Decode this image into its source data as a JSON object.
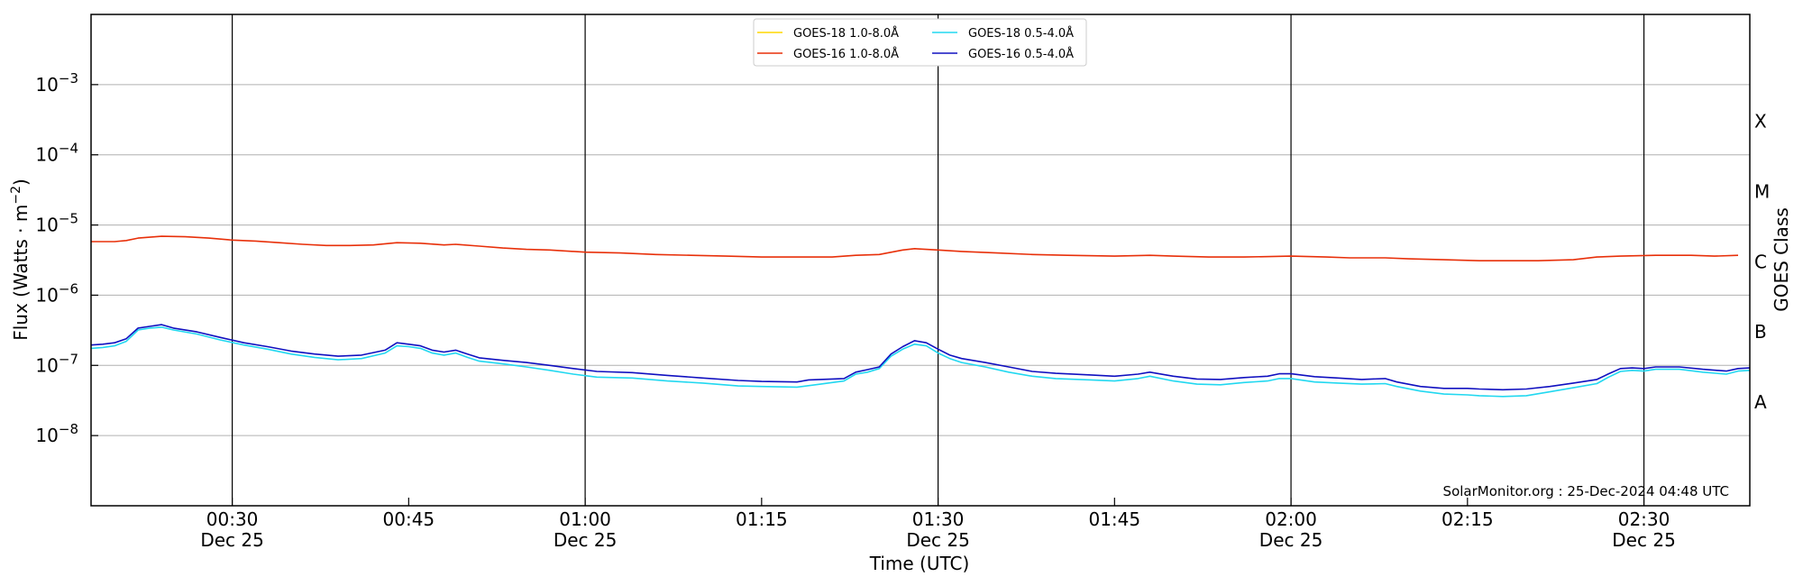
{
  "chart_data": {
    "type": "line",
    "ylabel": "Flux (Watts · m⁻²)",
    "xlabel": "Time (UTC)",
    "right_axis_label": "GOES Class",
    "credit": "SolarMonitor.org : 25-Dec-2024 04:48 UTC",
    "y_scale": "log",
    "ylim": [
      1e-09,
      0.01
    ],
    "xlim": [
      "00:18",
      "02:39"
    ],
    "grid": "horizontal",
    "legend_position": "top-center",
    "y_ticks": [
      {
        "value": 1e-08,
        "label_base": "10",
        "label_exp": "−8"
      },
      {
        "value": 1e-07,
        "label_base": "10",
        "label_exp": "−7"
      },
      {
        "value": 1e-06,
        "label_base": "10",
        "label_exp": "−6"
      },
      {
        "value": 1e-05,
        "label_base": "10",
        "label_exp": "−5"
      },
      {
        "value": 0.0001,
        "label_base": "10",
        "label_exp": "−4"
      },
      {
        "value": 0.001,
        "label_base": "10",
        "label_exp": "−3"
      }
    ],
    "x_ticks": [
      {
        "time": "00:30",
        "label": "00:30",
        "sublabel": "Dec 25"
      },
      {
        "time": "00:45",
        "label": "00:45",
        "sublabel": ""
      },
      {
        "time": "01:00",
        "label": "01:00",
        "sublabel": "Dec 25"
      },
      {
        "time": "01:15",
        "label": "01:15",
        "sublabel": ""
      },
      {
        "time": "01:30",
        "label": "01:30",
        "sublabel": "Dec 25"
      },
      {
        "time": "01:45",
        "label": "01:45",
        "sublabel": ""
      },
      {
        "time": "02:00",
        "label": "02:00",
        "sublabel": "Dec 25"
      },
      {
        "time": "02:15",
        "label": "02:15",
        "sublabel": ""
      },
      {
        "time": "02:30",
        "label": "02:30",
        "sublabel": "Dec 25"
      }
    ],
    "vertical_lines": [
      "00:30",
      "01:00",
      "01:30",
      "02:00",
      "02:30"
    ],
    "class_labels": [
      {
        "label": "A",
        "value": 3e-08
      },
      {
        "label": "B",
        "value": 3e-07
      },
      {
        "label": "C",
        "value": 3e-06
      },
      {
        "label": "M",
        "value": 3e-05
      },
      {
        "label": "X",
        "value": 0.0003
      }
    ],
    "series": [
      {
        "name": "GOES-18 1.0-8.0Å",
        "color": "#FFD700",
        "points": []
      },
      {
        "name": "GOES-16 1.0-8.0Å",
        "color": "#E8300A",
        "points": [
          [
            "00:18",
            5.8e-06
          ],
          [
            "00:20",
            5.8e-06
          ],
          [
            "00:21",
            6e-06
          ],
          [
            "00:22",
            6.5e-06
          ],
          [
            "00:24",
            6.9e-06
          ],
          [
            "00:26",
            6.8e-06
          ],
          [
            "00:28",
            6.5e-06
          ],
          [
            "00:30",
            6.1e-06
          ],
          [
            "00:32",
            5.9e-06
          ],
          [
            "00:34",
            5.6e-06
          ],
          [
            "00:36",
            5.3e-06
          ],
          [
            "00:38",
            5.1e-06
          ],
          [
            "00:40",
            5.1e-06
          ],
          [
            "00:42",
            5.2e-06
          ],
          [
            "00:44",
            5.6e-06
          ],
          [
            "00:46",
            5.5e-06
          ],
          [
            "00:48",
            5.2e-06
          ],
          [
            "00:49",
            5.3e-06
          ],
          [
            "00:51",
            5e-06
          ],
          [
            "00:53",
            4.7e-06
          ],
          [
            "00:55",
            4.5e-06
          ],
          [
            "00:57",
            4.4e-06
          ],
          [
            "01:00",
            4.1e-06
          ],
          [
            "01:03",
            4e-06
          ],
          [
            "01:06",
            3.8e-06
          ],
          [
            "01:09",
            3.7e-06
          ],
          [
            "01:12",
            3.6e-06
          ],
          [
            "01:15",
            3.5e-06
          ],
          [
            "01:18",
            3.5e-06
          ],
          [
            "01:21",
            3.5e-06
          ],
          [
            "01:23",
            3.7e-06
          ],
          [
            "01:25",
            3.8e-06
          ],
          [
            "01:27",
            4.4e-06
          ],
          [
            "01:28",
            4.6e-06
          ],
          [
            "01:30",
            4.4e-06
          ],
          [
            "01:32",
            4.2e-06
          ],
          [
            "01:35",
            4e-06
          ],
          [
            "01:38",
            3.8e-06
          ],
          [
            "01:41",
            3.7e-06
          ],
          [
            "01:45",
            3.6e-06
          ],
          [
            "01:48",
            3.7e-06
          ],
          [
            "01:50",
            3.6e-06
          ],
          [
            "01:53",
            3.5e-06
          ],
          [
            "01:56",
            3.5e-06
          ],
          [
            "02:00",
            3.6e-06
          ],
          [
            "02:03",
            3.5e-06
          ],
          [
            "02:05",
            3.4e-06
          ],
          [
            "02:08",
            3.4e-06
          ],
          [
            "02:10",
            3.3e-06
          ],
          [
            "02:13",
            3.2e-06
          ],
          [
            "02:16",
            3.1e-06
          ],
          [
            "02:19",
            3.1e-06
          ],
          [
            "02:21",
            3.1e-06
          ],
          [
            "02:24",
            3.2e-06
          ],
          [
            "02:26",
            3.5e-06
          ],
          [
            "02:28",
            3.6e-06
          ],
          [
            "02:31",
            3.7e-06
          ],
          [
            "02:34",
            3.7e-06
          ],
          [
            "02:36",
            3.6e-06
          ],
          [
            "02:38",
            3.7e-06
          ]
        ]
      },
      {
        "name": "GOES-18 0.5-4.0Å",
        "color": "#22D8F0",
        "points": [
          [
            "00:18",
            1.75e-07
          ],
          [
            "00:19",
            1.8e-07
          ],
          [
            "00:20",
            1.9e-07
          ],
          [
            "00:21",
            2.2e-07
          ],
          [
            "00:22",
            3.2e-07
          ],
          [
            "00:23",
            3.4e-07
          ],
          [
            "00:24",
            3.5e-07
          ],
          [
            "00:25",
            3.2e-07
          ],
          [
            "00:27",
            2.8e-07
          ],
          [
            "00:29",
            2.3e-07
          ],
          [
            "00:31",
            1.95e-07
          ],
          [
            "00:33",
            1.7e-07
          ],
          [
            "00:35",
            1.45e-07
          ],
          [
            "00:37",
            1.3e-07
          ],
          [
            "00:39",
            1.2e-07
          ],
          [
            "00:41",
            1.25e-07
          ],
          [
            "00:43",
            1.5e-07
          ],
          [
            "00:44",
            1.9e-07
          ],
          [
            "00:45",
            1.85e-07
          ],
          [
            "00:46",
            1.75e-07
          ],
          [
            "00:47",
            1.5e-07
          ],
          [
            "00:48",
            1.4e-07
          ],
          [
            "00:49",
            1.5e-07
          ],
          [
            "00:50",
            1.3e-07
          ],
          [
            "00:51",
            1.15e-07
          ],
          [
            "00:53",
            1.05e-07
          ],
          [
            "00:55",
            9.5e-08
          ],
          [
            "00:57",
            8.5e-08
          ],
          [
            "00:59",
            7.5e-08
          ],
          [
            "01:01",
            6.8e-08
          ],
          [
            "01:04",
            6.6e-08
          ],
          [
            "01:07",
            6e-08
          ],
          [
            "01:10",
            5.6e-08
          ],
          [
            "01:13",
            5.1e-08
          ],
          [
            "01:15",
            5e-08
          ],
          [
            "01:18",
            4.9e-08
          ],
          [
            "01:20",
            5.4e-08
          ],
          [
            "01:22",
            6e-08
          ],
          [
            "01:23",
            7.5e-08
          ],
          [
            "01:24",
            8e-08
          ],
          [
            "01:25",
            9e-08
          ],
          [
            "01:26",
            1.35e-07
          ],
          [
            "01:27",
            1.7e-07
          ],
          [
            "01:28",
            2e-07
          ],
          [
            "01:29",
            1.9e-07
          ],
          [
            "01:30",
            1.5e-07
          ],
          [
            "01:31",
            1.25e-07
          ],
          [
            "01:32",
            1.1e-07
          ],
          [
            "01:34",
            9.5e-08
          ],
          [
            "01:36",
            8e-08
          ],
          [
            "01:38",
            7e-08
          ],
          [
            "01:40",
            6.5e-08
          ],
          [
            "01:43",
            6.2e-08
          ],
          [
            "01:45",
            6e-08
          ],
          [
            "01:47",
            6.5e-08
          ],
          [
            "01:48",
            7e-08
          ],
          [
            "01:50",
            6e-08
          ],
          [
            "01:52",
            5.4e-08
          ],
          [
            "01:54",
            5.3e-08
          ],
          [
            "01:56",
            5.7e-08
          ],
          [
            "01:58",
            6e-08
          ],
          [
            "01:59",
            6.5e-08
          ],
          [
            "02:00",
            6.5e-08
          ],
          [
            "02:02",
            5.8e-08
          ],
          [
            "02:04",
            5.6e-08
          ],
          [
            "02:06",
            5.4e-08
          ],
          [
            "02:08",
            5.5e-08
          ],
          [
            "02:09",
            5e-08
          ],
          [
            "02:11",
            4.3e-08
          ],
          [
            "02:13",
            3.9e-08
          ],
          [
            "02:15",
            3.8e-08
          ],
          [
            "02:16",
            3.7e-08
          ],
          [
            "02:18",
            3.6e-08
          ],
          [
            "02:20",
            3.7e-08
          ],
          [
            "02:22",
            4.2e-08
          ],
          [
            "02:24",
            4.8e-08
          ],
          [
            "02:26",
            5.5e-08
          ],
          [
            "02:27",
            6.8e-08
          ],
          [
            "02:28",
            8.2e-08
          ],
          [
            "02:29",
            8.5e-08
          ],
          [
            "02:30",
            8.3e-08
          ],
          [
            "02:31",
            8.8e-08
          ],
          [
            "02:33",
            8.8e-08
          ],
          [
            "02:35",
            8e-08
          ],
          [
            "02:37",
            7.5e-08
          ],
          [
            "02:38",
            8.3e-08
          ],
          [
            "02:39",
            8.5e-08
          ]
        ]
      },
      {
        "name": "GOES-16 0.5-4.0Å",
        "color": "#1010C0",
        "points": [
          [
            "00:18",
            1.95e-07
          ],
          [
            "00:19",
            2e-07
          ],
          [
            "00:20",
            2.1e-07
          ],
          [
            "00:21",
            2.4e-07
          ],
          [
            "00:22",
            3.4e-07
          ],
          [
            "00:23",
            3.6e-07
          ],
          [
            "00:24",
            3.8e-07
          ],
          [
            "00:25",
            3.4e-07
          ],
          [
            "00:27",
            3e-07
          ],
          [
            "00:29",
            2.5e-07
          ],
          [
            "00:31",
            2.1e-07
          ],
          [
            "00:33",
            1.85e-07
          ],
          [
            "00:35",
            1.6e-07
          ],
          [
            "00:37",
            1.45e-07
          ],
          [
            "00:39",
            1.35e-07
          ],
          [
            "00:41",
            1.4e-07
          ],
          [
            "00:43",
            1.65e-07
          ],
          [
            "00:44",
            2.1e-07
          ],
          [
            "00:45",
            2e-07
          ],
          [
            "00:46",
            1.9e-07
          ],
          [
            "00:47",
            1.65e-07
          ],
          [
            "00:48",
            1.55e-07
          ],
          [
            "00:49",
            1.65e-07
          ],
          [
            "00:50",
            1.45e-07
          ],
          [
            "00:51",
            1.28e-07
          ],
          [
            "00:53",
            1.18e-07
          ],
          [
            "00:55",
            1.1e-07
          ],
          [
            "00:57",
            1e-07
          ],
          [
            "00:59",
            9e-08
          ],
          [
            "01:01",
            8.2e-08
          ],
          [
            "01:04",
            7.9e-08
          ],
          [
            "01:07",
            7.2e-08
          ],
          [
            "01:10",
            6.6e-08
          ],
          [
            "01:13",
            6.1e-08
          ],
          [
            "01:15",
            5.9e-08
          ],
          [
            "01:18",
            5.8e-08
          ],
          [
            "01:19",
            6.2e-08
          ],
          [
            "01:22",
            6.5e-08
          ],
          [
            "01:23",
            8e-08
          ],
          [
            "01:24",
            8.7e-08
          ],
          [
            "01:25",
            9.5e-08
          ],
          [
            "01:26",
            1.45e-07
          ],
          [
            "01:27",
            1.85e-07
          ],
          [
            "01:28",
            2.25e-07
          ],
          [
            "01:29",
            2.1e-07
          ],
          [
            "01:30",
            1.7e-07
          ],
          [
            "01:31",
            1.4e-07
          ],
          [
            "01:32",
            1.25e-07
          ],
          [
            "01:34",
            1.1e-07
          ],
          [
            "01:36",
            9.5e-08
          ],
          [
            "01:38",
            8.2e-08
          ],
          [
            "01:40",
            7.7e-08
          ],
          [
            "01:43",
            7.3e-08
          ],
          [
            "01:45",
            7e-08
          ],
          [
            "01:47",
            7.5e-08
          ],
          [
            "01:48",
            8e-08
          ],
          [
            "01:50",
            7e-08
          ],
          [
            "01:52",
            6.4e-08
          ],
          [
            "01:54",
            6.3e-08
          ],
          [
            "01:56",
            6.7e-08
          ],
          [
            "01:58",
            7e-08
          ],
          [
            "01:59",
            7.6e-08
          ],
          [
            "02:00",
            7.6e-08
          ],
          [
            "02:02",
            6.9e-08
          ],
          [
            "02:04",
            6.6e-08
          ],
          [
            "02:06",
            6.3e-08
          ],
          [
            "02:08",
            6.5e-08
          ],
          [
            "02:09",
            5.8e-08
          ],
          [
            "02:11",
            5e-08
          ],
          [
            "02:13",
            4.7e-08
          ],
          [
            "02:15",
            4.7e-08
          ],
          [
            "02:16",
            4.6e-08
          ],
          [
            "02:18",
            4.5e-08
          ],
          [
            "02:20",
            4.6e-08
          ],
          [
            "02:22",
            5e-08
          ],
          [
            "02:24",
            5.6e-08
          ],
          [
            "02:26",
            6.3e-08
          ],
          [
            "02:27",
            7.6e-08
          ],
          [
            "02:28",
            9e-08
          ],
          [
            "02:29",
            9.2e-08
          ],
          [
            "02:30",
            9e-08
          ],
          [
            "02:31",
            9.5e-08
          ],
          [
            "02:33",
            9.5e-08
          ],
          [
            "02:35",
            8.8e-08
          ],
          [
            "02:37",
            8.3e-08
          ],
          [
            "02:38",
            9e-08
          ],
          [
            "02:39",
            9.2e-08
          ]
        ]
      }
    ]
  }
}
